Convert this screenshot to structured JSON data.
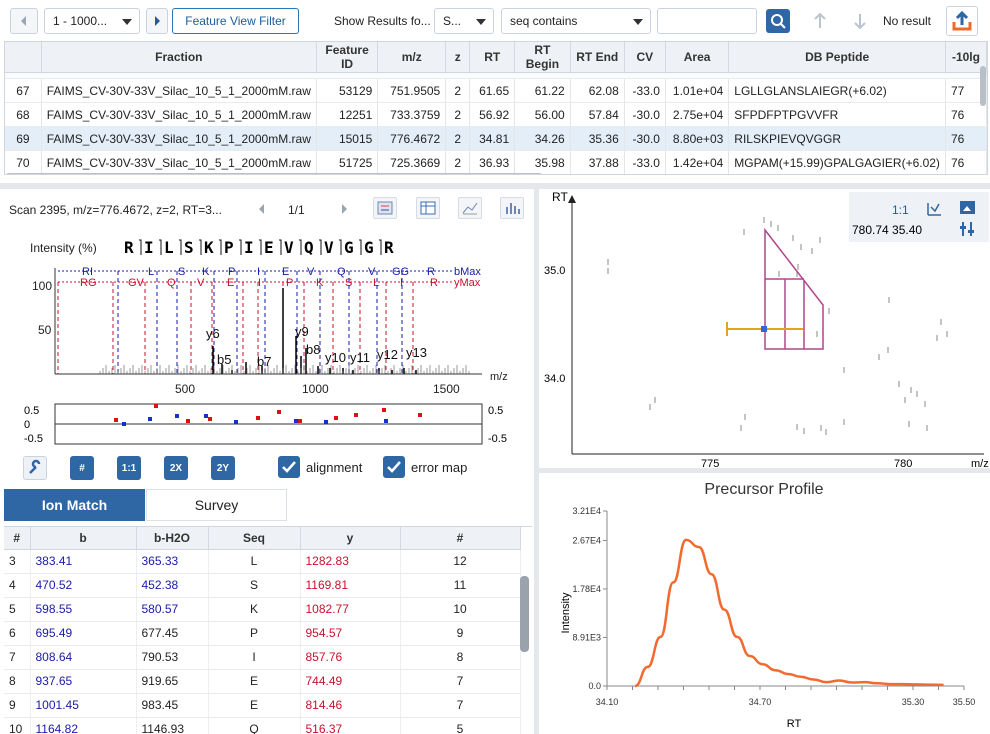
{
  "toolbar": {
    "page_range": "1 - 1000...",
    "feature_view_filter": "Feature View Filter",
    "show_results_label": "Show Results fo...",
    "field_select": "S...",
    "condition_select": "seq contains",
    "search_value": "",
    "result_status": "No result"
  },
  "feature_table": {
    "headers": [
      "",
      "Fraction",
      "Feature ID",
      "m/z",
      "z",
      "RT",
      "RT Begin",
      "RT End",
      "CV",
      "Area",
      "DB Peptide",
      "-10lg"
    ],
    "rows": [
      {
        "idx": "67",
        "fraction": "FAIMS_CV-30V-33V_Silac_10_5_1_2000mM.raw",
        "feature_id": "53129",
        "mz": "751.9505",
        "z": "2",
        "rt": "61.65",
        "rt_begin": "61.22",
        "rt_end": "62.08",
        "cv": "-33.0",
        "area": "1.01e+04",
        "peptide": "LGLLGLANSLAIEGR(+6.02)",
        "score": "77"
      },
      {
        "idx": "68",
        "fraction": "FAIMS_CV-30V-33V_Silac_10_5_1_2000mM.raw",
        "feature_id": "12251",
        "mz": "733.3759",
        "z": "2",
        "rt": "56.92",
        "rt_begin": "56.00",
        "rt_end": "57.84",
        "cv": "-30.0",
        "area": "2.75e+04",
        "peptide": "SFPDFPTPGVVFR",
        "score": "76"
      },
      {
        "idx": "69",
        "fraction": "FAIMS_CV-30V-33V_Silac_10_5_1_2000mM.raw",
        "feature_id": "15015",
        "mz": "776.4672",
        "z": "2",
        "rt": "34.81",
        "rt_begin": "34.26",
        "rt_end": "35.36",
        "cv": "-30.0",
        "area": "8.80e+03",
        "peptide": "RILSKPIEVQVGGR",
        "score": "76"
      },
      {
        "idx": "70",
        "fraction": "FAIMS_CV-30V-33V_Silac_10_5_1_2000mM.raw",
        "feature_id": "51725",
        "mz": "725.3669",
        "z": "2",
        "rt": "36.93",
        "rt_begin": "35.98",
        "rt_end": "37.88",
        "cv": "-33.0",
        "area": "1.42e+04",
        "peptide": "MGPAM(+15.99)GPALGAGIER(+6.02)",
        "score": "76"
      }
    ]
  },
  "spectrum": {
    "scan_info": "Scan 2395, m/z=776.4672, z=2, RT=3...",
    "page": "1/1",
    "y_label": "Intensity (%)",
    "sequence": [
      "R",
      "I",
      "L",
      "S",
      "K",
      "P",
      "I",
      "E",
      "V",
      "Q",
      "V",
      "G",
      "G",
      "R"
    ],
    "top_blue": [
      "RI",
      "L",
      "S",
      "K",
      "P",
      "I",
      "E",
      "V",
      "Q",
      "V",
      "GG",
      "R"
    ],
    "top_blue_end": "bMax",
    "top_red": [
      "RG",
      "GV",
      "Q",
      "V",
      "E",
      "I",
      "P",
      "K",
      "S",
      "L",
      "I",
      "R"
    ],
    "top_red_end": "yMax",
    "x_unit": "m/z",
    "x_ticks": [
      "500",
      "1000",
      "1500"
    ],
    "y_ticks": [
      "100",
      "50"
    ],
    "peak_labels": [
      "y6",
      "b5",
      "b7",
      "y9",
      "b8",
      "y10",
      "y11",
      "y12",
      "y13"
    ],
    "err_left": [
      "0.5",
      "0",
      "-0.5"
    ],
    "err_right": [
      "0.5",
      "-0.5"
    ],
    "btn_11": "1:1",
    "btn_2x": "2X",
    "btn_2y": "2Y",
    "btn_hash": "#",
    "alignment": "alignment",
    "error_map": "error map"
  },
  "ion_tabs": [
    "Ion Match",
    "Survey"
  ],
  "ion_table": {
    "headers": [
      "#",
      "b",
      "b-H2O",
      "Seq",
      "y",
      "#"
    ],
    "rows": [
      {
        "n": "3",
        "b": "383.41",
        "bh": "365.33",
        "seq": "L",
        "y": "1282.83",
        "n2": "12"
      },
      {
        "n": "4",
        "b": "470.52",
        "bh": "452.38",
        "seq": "S",
        "y": "1169.81",
        "n2": "11"
      },
      {
        "n": "5",
        "b": "598.55",
        "bh": "580.57",
        "seq": "K",
        "y": "1082.77",
        "n2": "10"
      },
      {
        "n": "6",
        "b": "695.49",
        "bh": "677.45",
        "seq": "P",
        "y": "954.57",
        "n2": "9"
      },
      {
        "n": "7",
        "b": "808.64",
        "bh": "790.53",
        "seq": "I",
        "y": "857.76",
        "n2": "8"
      },
      {
        "n": "8",
        "b": "937.65",
        "bh": "919.65",
        "seq": "E",
        "y": "744.49",
        "n2": "7"
      },
      {
        "n": "9",
        "b": "1001.45",
        "bh": "983.45",
        "seq": "E",
        "y": "814.46",
        "n2": "7"
      },
      {
        "n": "10",
        "b": "1164.82",
        "bh": "1146.93",
        "seq": "Q",
        "y": "516.37",
        "n2": "5"
      }
    ]
  },
  "map": {
    "y_label": "RT",
    "x_unit": "m/z",
    "ratio": "1:1",
    "coord": "780.74 35.40",
    "y_ticks": [
      "35.0",
      "34.0"
    ],
    "x_ticks": [
      "775",
      "780"
    ]
  },
  "chart_data": {
    "type": "line",
    "title": "Precursor Profile",
    "xlabel": "RT",
    "ylabel": "Intensity",
    "xlim": [
      34.1,
      35.5
    ],
    "ylim": [
      0,
      32100
    ],
    "x_ticks": [
      "34.10",
      "34.70",
      "35.30",
      "35.50"
    ],
    "y_ticks": [
      "0.0",
      "8.91E3",
      "1.78E4",
      "2.67E4",
      "3.21E4"
    ],
    "series": [
      {
        "color": "#f26a2e",
        "x": [
          34.21,
          34.26,
          34.31,
          34.36,
          34.41,
          34.46,
          34.51,
          34.56,
          34.61,
          34.66,
          34.71,
          34.76,
          34.81,
          34.86,
          34.91,
          34.96,
          35.01,
          35.06,
          35.11,
          35.16,
          35.21,
          35.26,
          35.31,
          35.36,
          35.42
        ],
        "y": [
          0,
          3500,
          9000,
          19000,
          26800,
          25500,
          20500,
          14000,
          9000,
          5500,
          4000,
          2900,
          2200,
          1700,
          1200,
          700,
          1000,
          650,
          700,
          500,
          350,
          350,
          300,
          250,
          200
        ]
      }
    ]
  }
}
